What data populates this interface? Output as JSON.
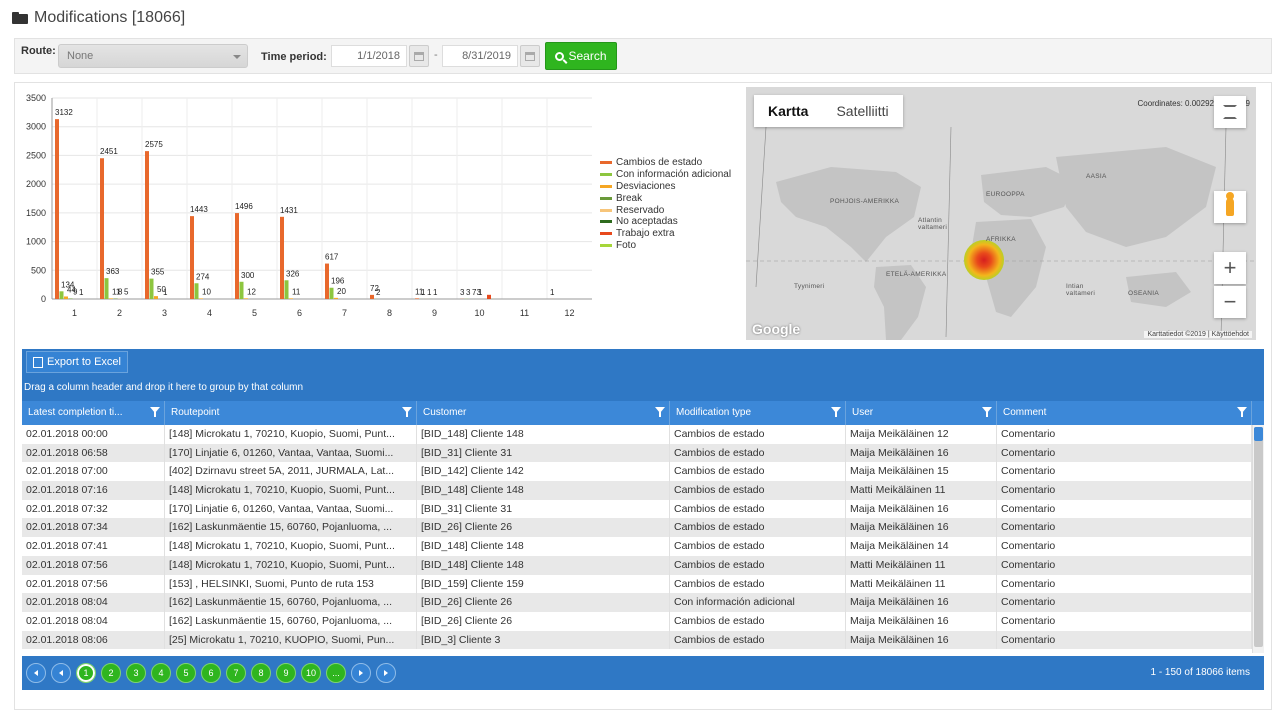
{
  "page": {
    "title": "Modifications [18066]"
  },
  "filters": {
    "route_label": "Route:",
    "route_value": "None",
    "time_label": "Time period:",
    "date_from": "1/1/2018",
    "date_to": "8/31/2019",
    "dash": "-",
    "search_label": "Search"
  },
  "chart_data": {
    "type": "bar",
    "categories": [
      "1",
      "2",
      "3",
      "4",
      "5",
      "6",
      "7",
      "8",
      "9",
      "10",
      "11",
      "12"
    ],
    "ylim": [
      0,
      3500
    ],
    "yticks": [
      "0",
      "500",
      "1000",
      "1500",
      "2000",
      "2500",
      "3000",
      "3500"
    ],
    "series": [
      {
        "name": "Cambios de estado",
        "color": "#e8682c",
        "values": [
          3132,
          2451,
          2575,
          1443,
          1496,
          1431,
          617,
          72,
          11,
          3,
          0,
          1
        ]
      },
      {
        "name": "Con información adicional",
        "color": "#8dc63f",
        "values": [
          134,
          363,
          355,
          274,
          300,
          326,
          196,
          2,
          1,
          3,
          0,
          0
        ]
      },
      {
        "name": "Desviaciones",
        "color": "#f5a623",
        "values": [
          44,
          11,
          50,
          10,
          12,
          11,
          20,
          0,
          1,
          0,
          0,
          0
        ]
      },
      {
        "name": "Break",
        "color": "#6a9a3a",
        "values": [
          9,
          8,
          1,
          0,
          0,
          0,
          0,
          0,
          1,
          0,
          0,
          0
        ]
      },
      {
        "name": "Reservado",
        "color": "#f7c57a",
        "values": [
          1,
          5,
          0,
          0,
          0,
          0,
          0,
          0,
          0,
          0,
          0,
          0
        ]
      },
      {
        "name": "No aceptadas",
        "color": "#2e6b1e",
        "values": [
          0,
          0,
          0,
          0,
          0,
          0,
          0,
          0,
          0,
          0,
          0,
          0
        ]
      },
      {
        "name": "Trabajo extra",
        "color": "#e8491c",
        "values": [
          0,
          0,
          0,
          0,
          0,
          0,
          0,
          0,
          0,
          73,
          0,
          0
        ]
      },
      {
        "name": "Foto",
        "color": "#a6d63a",
        "values": [
          0,
          0,
          0,
          0,
          0,
          0,
          0,
          0,
          0,
          1,
          0,
          0
        ]
      }
    ],
    "bar_labels": [
      [
        "3132",
        "134",
        "44",
        "9",
        "1"
      ],
      [
        "2451",
        "363",
        "11",
        "8",
        "5"
      ],
      [
        "2575",
        "355",
        "50",
        "1"
      ],
      [
        "1443",
        "274",
        "10"
      ],
      [
        "1496",
        "300",
        "12"
      ],
      [
        "1431",
        "326",
        "11"
      ],
      [
        "617",
        "196",
        "20"
      ],
      [
        "72",
        "2"
      ],
      [
        "11",
        "1",
        "1",
        "1"
      ],
      [
        "3",
        "3",
        "73",
        "1"
      ],
      [],
      [
        "1"
      ]
    ]
  },
  "map": {
    "tab_map": "Kartta",
    "tab_sat": "Satelliitti",
    "coords": "Coordinates: 0.00292, -0.01259",
    "labels": [
      "POHJOIS-AMERIKKA",
      "EUROOPPA",
      "AASIA",
      "AFRIKKA",
      "ETELÄ-AMERIKKA",
      "OSEANIA",
      "Atlantin valtameri",
      "Tyynimeri",
      "Intian valtameri"
    ],
    "google": "Google",
    "footer": "Karttatiedot ©2019 | Käyttöehdot",
    "zoom_in": "+",
    "zoom_out": "−"
  },
  "grid": {
    "export_label": "Export to Excel",
    "group_hint": "Drag a column header and drop it here to group by that column",
    "columns": [
      "Latest completion ti...",
      "Routepoint",
      "Customer",
      "Modification type",
      "User",
      "Comment"
    ],
    "rows": [
      [
        "02.01.2018 00:00",
        "[148] Microkatu 1, 70210, Kuopio, Suomi, Punt...",
        "[BID_148] Cliente 148",
        "Cambios de estado",
        "Maija Meikäläinen 12",
        "Comentario"
      ],
      [
        "02.01.2018 06:58",
        "[170] Linjatie 6, 01260, Vantaa, Vantaa, Suomi...",
        "[BID_31] Cliente 31",
        "Cambios de estado",
        "Maija Meikäläinen 16",
        "Comentario"
      ],
      [
        "02.01.2018 07:00",
        "[402] Dzirnavu street 5A, 2011, JURMALA, Lat...",
        "[BID_142] Cliente 142",
        "Cambios de estado",
        "Maija Meikäläinen 15",
        "Comentario"
      ],
      [
        "02.01.2018 07:16",
        "[148] Microkatu 1, 70210, Kuopio, Suomi, Punt...",
        "[BID_148] Cliente 148",
        "Cambios de estado",
        "Matti Meikäläinen 11",
        "Comentario"
      ],
      [
        "02.01.2018 07:32",
        "[170] Linjatie 6, 01260, Vantaa, Vantaa, Suomi...",
        "[BID_31] Cliente 31",
        "Cambios de estado",
        "Maija Meikäläinen 16",
        "Comentario"
      ],
      [
        "02.01.2018 07:34",
        "[162] Laskunmäentie 15, 60760, Pojanluoma, ...",
        "[BID_26] Cliente 26",
        "Cambios de estado",
        "Maija Meikäläinen 16",
        "Comentario"
      ],
      [
        "02.01.2018 07:41",
        "[148] Microkatu 1, 70210, Kuopio, Suomi, Punt...",
        "[BID_148] Cliente 148",
        "Cambios de estado",
        "Maija Meikäläinen 14",
        "Comentario"
      ],
      [
        "02.01.2018 07:56",
        "[148] Microkatu 1, 70210, Kuopio, Suomi, Punt...",
        "[BID_148] Cliente 148",
        "Cambios de estado",
        "Matti Meikäläinen 11",
        "Comentario"
      ],
      [
        "02.01.2018 07:56",
        "[153] , HELSINKI, Suomi, Punto de ruta 153",
        "[BID_159] Cliente 159",
        "Cambios de estado",
        "Matti Meikäläinen 11",
        "Comentario"
      ],
      [
        "02.01.2018 08:04",
        "[162] Laskunmäentie 15, 60760, Pojanluoma, ...",
        "[BID_26] Cliente 26",
        "Con información adicional",
        "Maija Meikäläinen 16",
        "Comentario"
      ],
      [
        "02.01.2018 08:04",
        "[162] Laskunmäentie 15, 60760, Pojanluoma, ...",
        "[BID_26] Cliente 26",
        "Cambios de estado",
        "Maija Meikäläinen 16",
        "Comentario"
      ],
      [
        "02.01.2018 08:06",
        "[25] Microkatu 1, 70210, KUOPIO, Suomi, Pun...",
        "[BID_3] Cliente 3",
        "Cambios de estado",
        "Maija Meikäläinen 16",
        "Comentario"
      ]
    ],
    "pages": [
      "1",
      "2",
      "3",
      "4",
      "5",
      "6",
      "7",
      "8",
      "9",
      "10",
      "..."
    ],
    "selected_page": "1",
    "pager_info": "1 - 150 of 18066 items"
  }
}
